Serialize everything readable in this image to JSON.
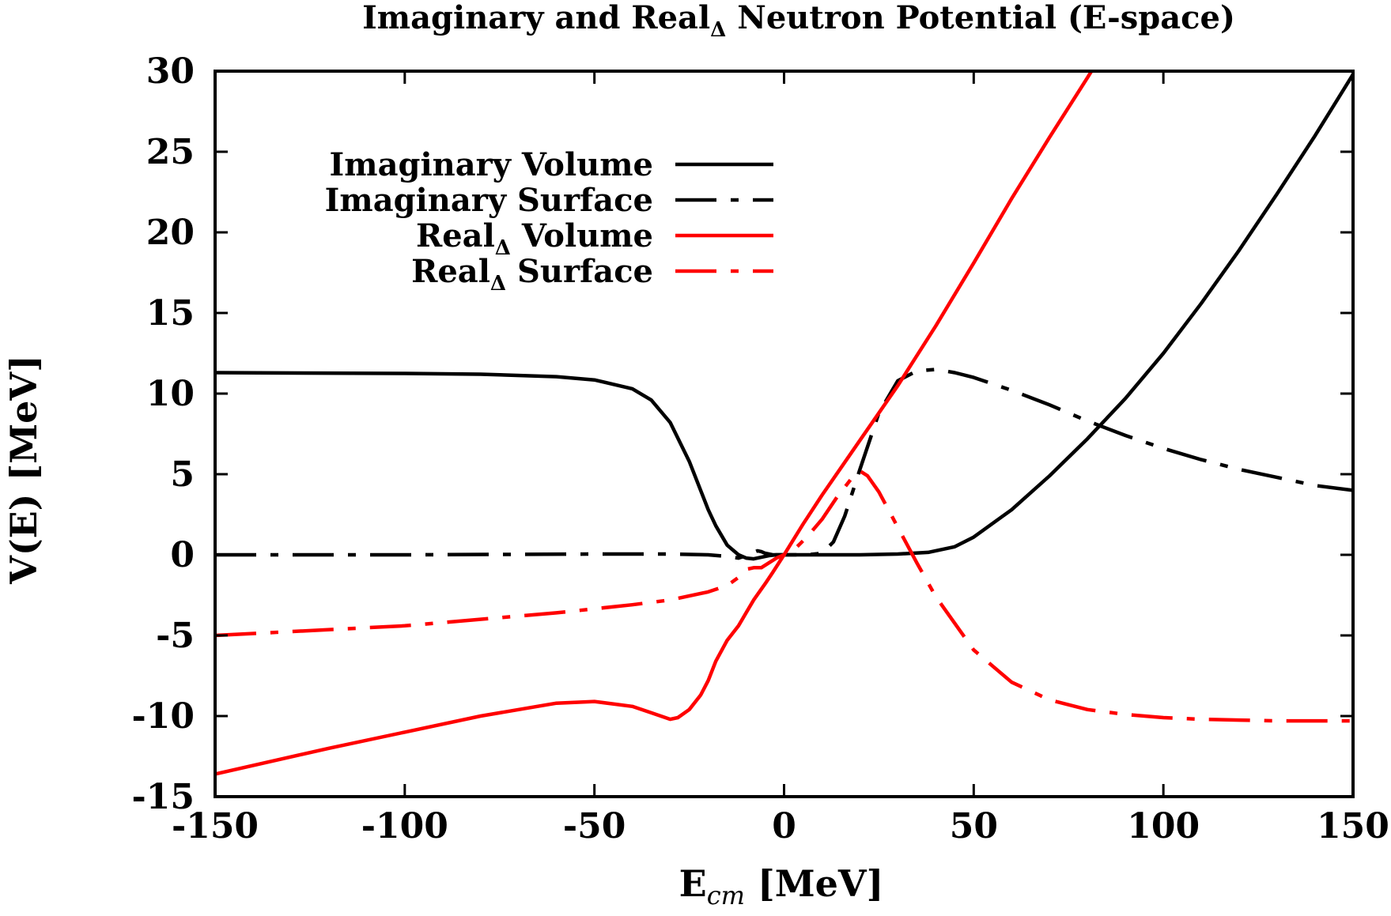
{
  "chart_data": {
    "type": "line",
    "title": "Imaginary and Real",
    "title_subscript": "Δ",
    "title_suffix": " Neutron Potential (E-space)",
    "xlabel": "E",
    "xlabel_subscript": "cm",
    "xlabel_suffix": " [MeV]",
    "ylabel": "V(E) [MeV]",
    "xlim": [
      -150,
      150
    ],
    "ylim": [
      -15,
      30
    ],
    "xticks": [
      "-150",
      "-100",
      "-50",
      "0",
      "50",
      "100",
      "150"
    ],
    "yticks": [
      "-15",
      "-10",
      "-5",
      "0",
      "5",
      "10",
      "15",
      "20",
      "25",
      "30"
    ],
    "grid": false,
    "legend_position": "top-left",
    "series": [
      {
        "name": "Imaginary Volume",
        "name_subscript": "",
        "name_suffix": "",
        "color": "#000000",
        "style": "solid",
        "x": [
          -150,
          -100,
          -80,
          -60,
          -50,
          -40,
          -35,
          -30,
          -25,
          -22,
          -20,
          -18,
          -15,
          -12,
          -10,
          -8,
          -6,
          -4,
          -2,
          0,
          10,
          20,
          30,
          38,
          45,
          50,
          60,
          70,
          80,
          90,
          100,
          110,
          120,
          130,
          140,
          150
        ],
        "y": [
          11.3,
          11.25,
          11.2,
          11.05,
          10.85,
          10.3,
          9.6,
          8.2,
          5.8,
          4.0,
          2.8,
          1.8,
          0.6,
          0.0,
          -0.2,
          -0.25,
          -0.15,
          -0.05,
          0.0,
          0.0,
          0.0,
          0.0,
          0.05,
          0.15,
          0.5,
          1.1,
          2.8,
          4.9,
          7.2,
          9.7,
          12.5,
          15.6,
          18.9,
          22.4,
          26.0,
          29.8
        ]
      },
      {
        "name": "Imaginary Surface",
        "name_subscript": "",
        "name_suffix": "",
        "color": "#000000",
        "style": "dashdot",
        "x": [
          -150,
          -100,
          -50,
          -30,
          -20,
          -15,
          -12,
          -10,
          -8,
          -7,
          -6,
          -5,
          -4,
          -3,
          -2,
          0,
          3,
          6,
          10,
          13,
          16,
          20,
          25,
          30,
          35,
          40,
          45,
          50,
          60,
          70,
          80,
          90,
          100,
          110,
          120,
          130,
          140,
          150
        ],
        "y": [
          0.0,
          0.0,
          0.05,
          0.05,
          0.0,
          -0.1,
          -0.2,
          -0.05,
          0.15,
          0.25,
          0.2,
          0.1,
          0.05,
          0.0,
          0.0,
          0.0,
          0.0,
          0.0,
          0.1,
          0.8,
          2.4,
          5.3,
          8.8,
          10.8,
          11.4,
          11.5,
          11.3,
          11.0,
          10.2,
          9.3,
          8.3,
          7.4,
          6.6,
          5.9,
          5.3,
          4.8,
          4.3,
          4.0
        ]
      },
      {
        "name": "Real",
        "name_subscript": "Δ",
        "name_suffix": " Volume",
        "color": "#ff0000",
        "style": "solid",
        "x": [
          -150,
          -120,
          -100,
          -80,
          -60,
          -50,
          -40,
          -35,
          -30,
          -28,
          -25,
          -22,
          -20,
          -18,
          -15,
          -12,
          -10,
          -8,
          -5,
          -3,
          0,
          5,
          10,
          15,
          20,
          30,
          40,
          50,
          60,
          70,
          80,
          85
        ],
        "y": [
          -13.6,
          -12.0,
          -11.0,
          -10.0,
          -9.2,
          -9.1,
          -9.4,
          -9.8,
          -10.2,
          -10.1,
          -9.6,
          -8.7,
          -7.8,
          -6.6,
          -5.3,
          -4.4,
          -3.6,
          -2.8,
          -1.8,
          -1.1,
          0.0,
          1.9,
          3.7,
          5.4,
          7.1,
          10.5,
          14.2,
          18.1,
          22.1,
          25.9,
          29.6,
          31.5
        ]
      },
      {
        "name": "Real",
        "name_subscript": "Δ",
        "name_suffix": " Surface",
        "color": "#ff0000",
        "style": "dashdot",
        "x": [
          -150,
          -100,
          -60,
          -40,
          -30,
          -20,
          -15,
          -12,
          -10,
          -8,
          -6,
          -4,
          -2,
          0,
          3,
          6,
          10,
          14,
          18,
          20,
          22,
          25,
          30,
          35,
          40,
          50,
          60,
          70,
          80,
          90,
          100,
          110,
          120,
          130,
          140,
          150
        ],
        "y": [
          -5.0,
          -4.4,
          -3.6,
          -3.1,
          -2.8,
          -2.3,
          -1.9,
          -1.4,
          -0.9,
          -0.8,
          -0.8,
          -0.5,
          -0.2,
          0.0,
          0.4,
          1.1,
          2.2,
          3.6,
          4.8,
          5.2,
          4.9,
          3.9,
          1.7,
          -0.5,
          -2.6,
          -5.9,
          -7.9,
          -9.0,
          -9.6,
          -9.9,
          -10.1,
          -10.2,
          -10.25,
          -10.3,
          -10.3,
          -10.3
        ]
      }
    ]
  }
}
